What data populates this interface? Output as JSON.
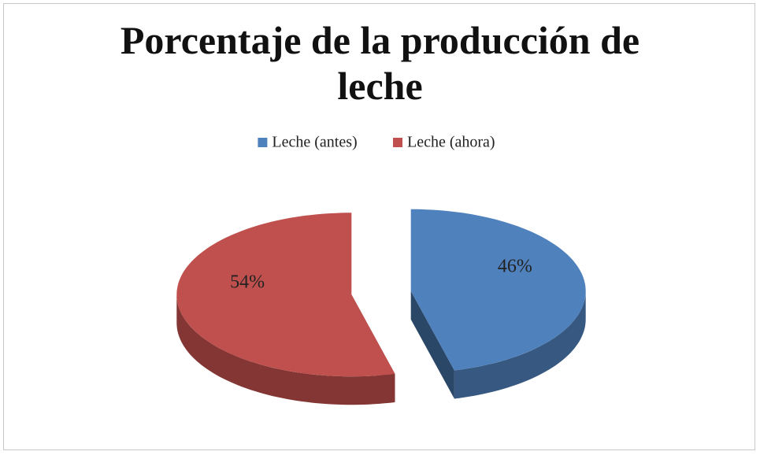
{
  "chart_data": {
    "type": "pie",
    "title": "Porcentaje de la producción de leche",
    "categories": [
      "Leche (antes)",
      "Leche (ahora)"
    ],
    "values": [
      46,
      54
    ],
    "value_labels": [
      "46%",
      "54%"
    ],
    "colors": [
      "#4f81bd",
      "#c0504d"
    ],
    "legend": "top"
  }
}
